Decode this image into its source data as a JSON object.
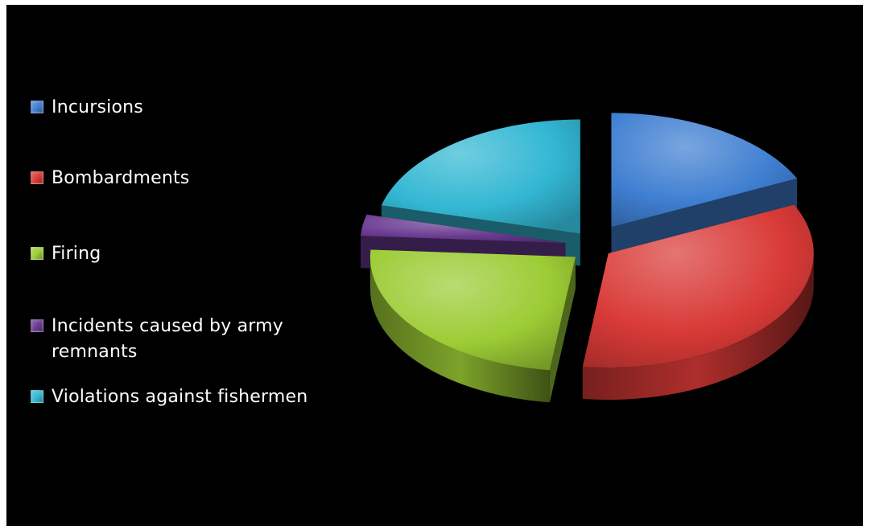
{
  "chart_data": {
    "type": "pie",
    "style": "3d-exploded",
    "legend_position": "left",
    "categories": [
      "Incursions",
      "Bombardments",
      "Firing",
      "Incidents caused by army remnants",
      "Violations against fishermen"
    ],
    "values": [
      18,
      34,
      24,
      3,
      21
    ],
    "colors": [
      "#3f7fd1",
      "#d93a37",
      "#9ccc35",
      "#6a3a91",
      "#33b7d3"
    ]
  }
}
